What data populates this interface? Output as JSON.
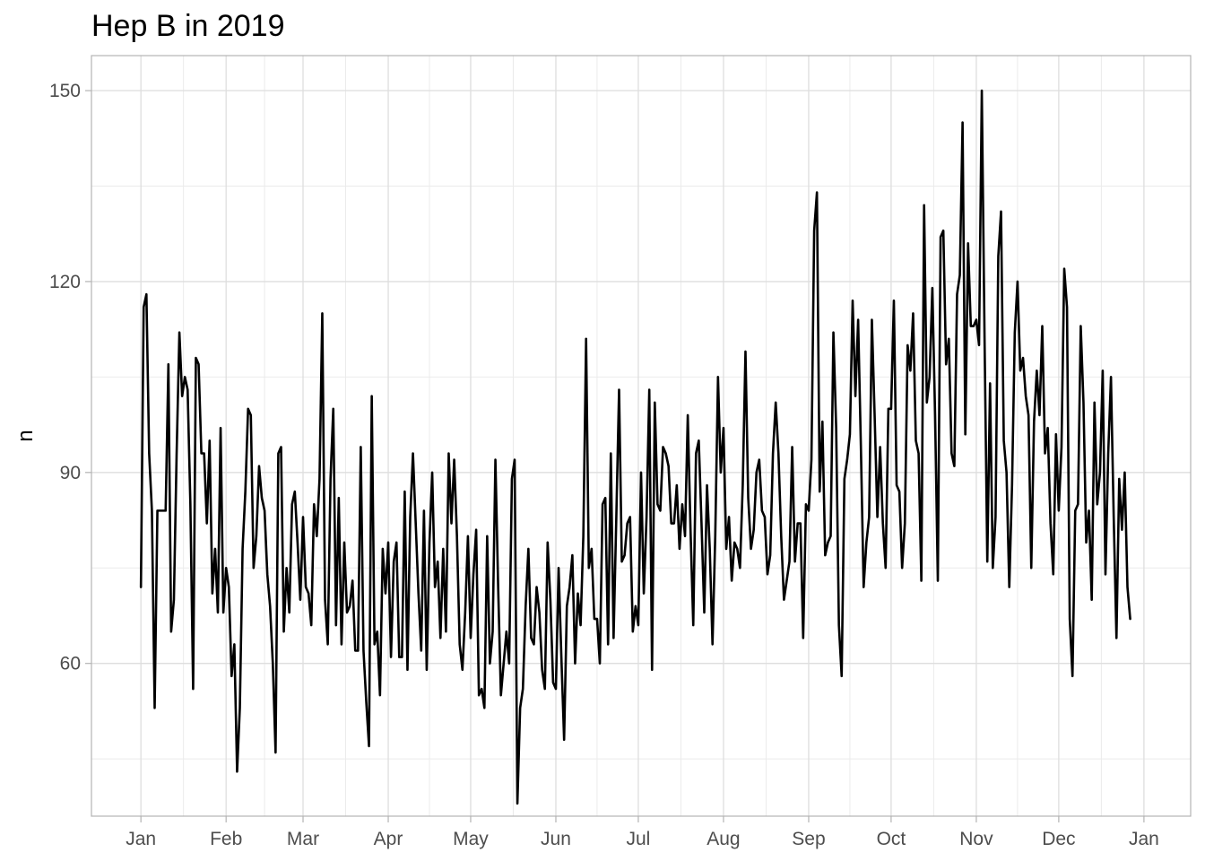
{
  "chart_data": {
    "type": "line",
    "title": "Hep B in 2019",
    "xlabel": "",
    "ylabel": "n",
    "x_ticks": [
      "Jan",
      "Feb",
      "Mar",
      "Apr",
      "May",
      "Jun",
      "Jul",
      "Aug",
      "Sep",
      "Oct",
      "Nov",
      "Dec",
      "Jan"
    ],
    "y_ticks": [
      60,
      90,
      120,
      150
    ],
    "ylim": [
      36,
      155.5
    ],
    "xlim": [
      "2018-12-14",
      "2020-01-18"
    ],
    "grid": true,
    "x_start": "2019-01-01",
    "x_step_days": 1,
    "series": [
      {
        "name": "",
        "color": "#000000",
        "values": [
          72,
          116,
          118,
          93,
          84,
          53,
          84,
          84,
          84,
          84,
          107,
          65,
          70,
          93,
          112,
          102,
          105,
          103,
          85,
          56,
          108,
          107,
          93,
          93,
          82,
          95,
          71,
          78,
          68,
          97,
          68,
          75,
          72,
          58,
          63,
          43,
          53,
          78,
          87,
          100,
          99,
          75,
          80,
          91,
          86,
          84,
          74,
          69,
          60,
          46,
          93,
          94,
          65,
          75,
          68,
          85,
          87,
          79,
          70,
          83,
          72,
          71,
          66,
          85,
          80,
          89,
          115,
          70,
          63,
          89,
          100,
          66,
          86,
          63,
          79,
          68,
          69,
          73,
          62,
          62,
          94,
          62,
          54,
          47,
          102,
          63,
          65,
          55,
          78,
          71,
          79,
          61,
          76,
          79,
          61,
          61,
          87,
          59,
          83,
          93,
          82,
          71,
          62,
          84,
          59,
          79,
          90,
          72,
          76,
          64,
          78,
          65,
          93,
          82,
          92,
          80,
          63,
          59,
          68,
          80,
          64,
          74,
          81,
          55,
          56,
          53,
          80,
          60,
          65,
          92,
          72,
          55,
          60,
          65,
          60,
          89,
          92,
          38,
          53,
          56,
          69,
          78,
          64,
          63,
          72,
          68,
          59,
          56,
          79,
          70,
          57,
          56,
          75,
          61,
          48,
          69,
          72,
          77,
          60,
          71,
          66,
          80,
          111,
          75,
          78,
          67,
          67,
          60,
          85,
          86,
          63,
          93,
          64,
          83,
          103,
          76,
          77,
          82,
          83,
          65,
          69,
          66,
          90,
          71,
          83,
          103,
          59,
          101,
          85,
          84,
          94,
          93,
          91,
          82,
          82,
          88,
          78,
          85,
          80,
          99,
          81,
          66,
          93,
          95,
          82,
          68,
          88,
          78,
          63,
          80,
          105,
          90,
          97,
          78,
          83,
          73,
          79,
          78,
          75,
          88,
          109,
          86,
          78,
          81,
          90,
          92,
          84,
          83,
          74,
          77,
          93,
          101,
          93,
          80,
          70,
          73,
          76,
          94,
          76,
          82,
          82,
          64,
          85,
          84,
          92,
          128,
          134,
          87,
          98,
          77,
          79,
          80,
          112,
          97,
          66,
          58,
          89,
          92,
          96,
          117,
          102,
          114,
          94,
          72,
          79,
          83,
          114,
          99,
          83,
          94,
          82,
          75,
          100,
          100,
          117,
          88,
          87,
          75,
          82,
          110,
          106,
          115,
          95,
          93,
          73,
          132,
          101,
          105,
          119,
          99,
          73,
          127,
          128,
          107,
          111,
          93,
          91,
          118,
          121,
          145,
          96,
          126,
          113,
          113,
          114,
          110,
          150,
          111,
          76,
          104,
          75,
          83,
          124,
          131,
          95,
          90,
          72,
          88,
          112,
          120,
          106,
          108,
          102,
          99,
          75,
          98,
          106,
          99,
          113,
          93,
          97,
          82,
          74,
          96,
          84,
          94,
          122,
          116,
          67,
          58,
          84,
          85,
          113,
          101,
          79,
          84,
          70,
          101,
          85,
          90,
          106,
          74,
          93,
          105,
          83,
          64,
          89,
          81,
          90,
          72,
          67
        ]
      }
    ]
  }
}
